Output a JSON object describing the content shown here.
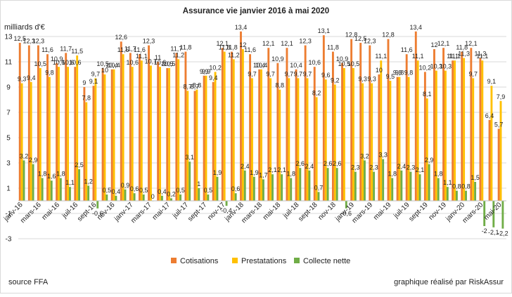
{
  "chart_data": {
    "type": "bar",
    "title": "Assurance vie janvier 2016 à mai 2020",
    "unit_label": "milliards d'€",
    "source": "source FFA",
    "credit": "graphique réalisé par RiskAssur",
    "ylim": [
      -3,
      13
    ],
    "yticks": [
      -3,
      -1,
      1,
      3,
      5,
      7,
      9,
      11,
      13
    ],
    "grid": true,
    "legend_position": "bottom",
    "colors": {
      "Cotisations": "#ED7D31",
      "Prestatations": "#FFC000",
      "Collecte nette": "#70AD47"
    },
    "categories": [
      "janv-16",
      "févr-16",
      "mars-16",
      "avr-16",
      "mai-16",
      "juin-16",
      "juil-16",
      "août-16",
      "sept-16",
      "oct-16",
      "nov-16",
      "déc-16",
      "janv-17",
      "févr-17",
      "mars-17",
      "avr-17",
      "mai-17",
      "juin-17",
      "juil-17",
      "août-17",
      "sept-17",
      "oct-17",
      "nov-17",
      "déc-17",
      "janv-18",
      "févr-18",
      "mars-18",
      "avr-18",
      "mai-18",
      "juin-18",
      "juil-18",
      "août-18",
      "sept-18",
      "oct-18",
      "nov-18",
      "déc-18",
      "janv-19",
      "févr-19",
      "mars-19",
      "avr-19",
      "mai-19",
      "juin-19",
      "juil-19",
      "août-19",
      "sept-19",
      "oct-19",
      "nov-19",
      "déc-19",
      "janv-20",
      "févr-20",
      "mars-20",
      "avr-20",
      "mai-20"
    ],
    "xtick_labels": [
      "janv-16",
      "mars-16",
      "mai-16",
      "juil-16",
      "sept-16",
      "nov-16",
      "janv-17",
      "mars-17",
      "mai-17",
      "juil-17",
      "sept-17",
      "nov-17",
      "janv-18",
      "mars-18",
      "mai-18",
      "juil-18",
      "sept-18",
      "nov-18",
      "janv-19",
      "mars-19",
      "mai-19",
      "juil-19",
      "sept-19",
      "nov-19",
      "janv-20",
      "mars-20",
      "mai-20"
    ],
    "series": [
      {
        "name": "Cotisations",
        "values": [
          12.5,
          12.3,
          12.3,
          11.6,
          10.9,
          11.7,
          10.6,
          9.0,
          9.1,
          10.5,
          10.4,
          12.6,
          11.7,
          11.6,
          12.3,
          11.0,
          10.5,
          11.7,
          11.8,
          8.7,
          9.9,
          9.4,
          12.1,
          11.8,
          13.4,
          11.6,
          10.4,
          12.1,
          10.9,
          12.1,
          10.4,
          12.3,
          10.6,
          13.1,
          11.8,
          10.9,
          12.8,
          12.5,
          12.3,
          10.0,
          12.8,
          9.8,
          11.6,
          13.4,
          10.2,
          12.0,
          12.1,
          11.1,
          11.8,
          12.1,
          11.3,
          6.4,
          5.7
        ]
      },
      {
        "name": "Prestatations",
        "values": [
          9.3,
          9.4,
          10.5,
          9.8,
          10.6,
          10.6,
          11.5,
          7.8,
          9.7,
          10.0,
          10.4,
          11.6,
          10.6,
          11.1,
          10.7,
          10.6,
          10.5,
          11.2,
          8.7,
          8.8,
          9.9,
          10.2,
          11.8,
          11.2,
          12.0,
          9.7,
          10.4,
          9.7,
          8.8,
          9.7,
          9.7,
          9.7,
          8.2,
          9.6,
          9.2,
          10.5,
          10.5,
          9.3,
          9.3,
          11.1,
          9.5,
          9.8,
          9.8,
          11.1,
          8.1,
          10.3,
          10.3,
          11.1,
          11.3,
          9.7,
          11.1,
          9.1,
          7.9
        ]
      },
      {
        "name": "Collecte nette",
        "values": [
          3.2,
          2.9,
          1.8,
          1.6,
          1.8,
          1.1,
          2.5,
          1.2,
          -0.6,
          0.5,
          0.4,
          0.9,
          0.6,
          0.5,
          0.0,
          0.4,
          0.2,
          0.5,
          3.1,
          1.0,
          0.5,
          1.9,
          -0.4,
          0.6,
          2.4,
          1.9,
          1.7,
          2.1,
          2.1,
          1.8,
          2.6,
          2.4,
          0.7,
          2.6,
          2.6,
          -0.6,
          2.3,
          3.2,
          2.3,
          3.3,
          1.8,
          2.4,
          2.3,
          2.1,
          2.9,
          1.8,
          1.1,
          0.8,
          0.8,
          1.5,
          -2.0,
          -2.1,
          -2.2
        ]
      }
    ],
    "data_labels": [
      [
        "12,5",
        "12,3",
        "12,3",
        "11,6",
        "10,9",
        "11,7",
        "10,6",
        "9",
        "9,1",
        "10,5",
        "10,4",
        "12,6",
        "11,7",
        "11,6",
        "12,3",
        "11",
        "10,5",
        "11,7",
        "11,8",
        "8,7",
        "9,9",
        "9,4",
        "12,1",
        "11,8",
        "13,4",
        "11,6",
        "10,4",
        "12,1",
        "10,9",
        "12,1",
        "10,4",
        "12,3",
        "10,6",
        "13,1",
        "11,8",
        "10,9",
        "12,8",
        "12,5",
        "12,3",
        "10",
        "12,8",
        "9,8",
        "11,6",
        "13,4",
        "10,2",
        "12",
        "12,1",
        "11,1",
        "11,8",
        "12,1",
        "11,3",
        "6,4",
        "5,7"
      ],
      [
        "9,3",
        "9,4",
        "10,5",
        "9,8",
        "10,6",
        "10,6",
        "11,5",
        "7,8",
        "9,7",
        "10",
        "10,4",
        "11,6",
        "10,6",
        "11,1",
        "10,7",
        "10,6",
        "10,5",
        "11,2",
        "8,7",
        "8,8",
        "9,9",
        "10,2",
        "11,8",
        "11,2",
        "12",
        "9,7",
        "10,4",
        "9,7",
        "8,8",
        "9,7",
        "9,7",
        "9,7",
        "8,2",
        "9,6",
        "9,2",
        "10,5",
        "10,5",
        "9,3",
        "9,3",
        "11,1",
        "9,5",
        "9,8",
        "9,8",
        "11,1",
        "8,1",
        "10,3",
        "10,3",
        "11,1",
        "11,3",
        "9,7",
        "11,1",
        "9,1",
        "7,9"
      ],
      [
        "3,2",
        "2,9",
        "1,8",
        "1,6",
        "1,8",
        "1,1",
        "2,5",
        "1,2",
        "-0,6",
        "0,5",
        "0,4",
        "0,9",
        "0,6",
        "0,5",
        "0",
        "0,4",
        "0,2",
        "0,5",
        "3,1",
        "1",
        "0,5",
        "1,9",
        "-0,4",
        "0,6",
        "2,4",
        "1,9",
        "1,7",
        "2,1",
        "2,1",
        "1,8",
        "2,6",
        "2,4",
        "0,7",
        "2,6",
        "2,6",
        "-0,6",
        "2,3",
        "3,2",
        "2,3",
        "3,3",
        "1,8",
        "2,4",
        "2,3",
        "2,1",
        "2,9",
        "1,8",
        "1,1",
        "0,8",
        "0,8",
        "1,5",
        "-2",
        "-2,1",
        "-2,2"
      ]
    ]
  }
}
